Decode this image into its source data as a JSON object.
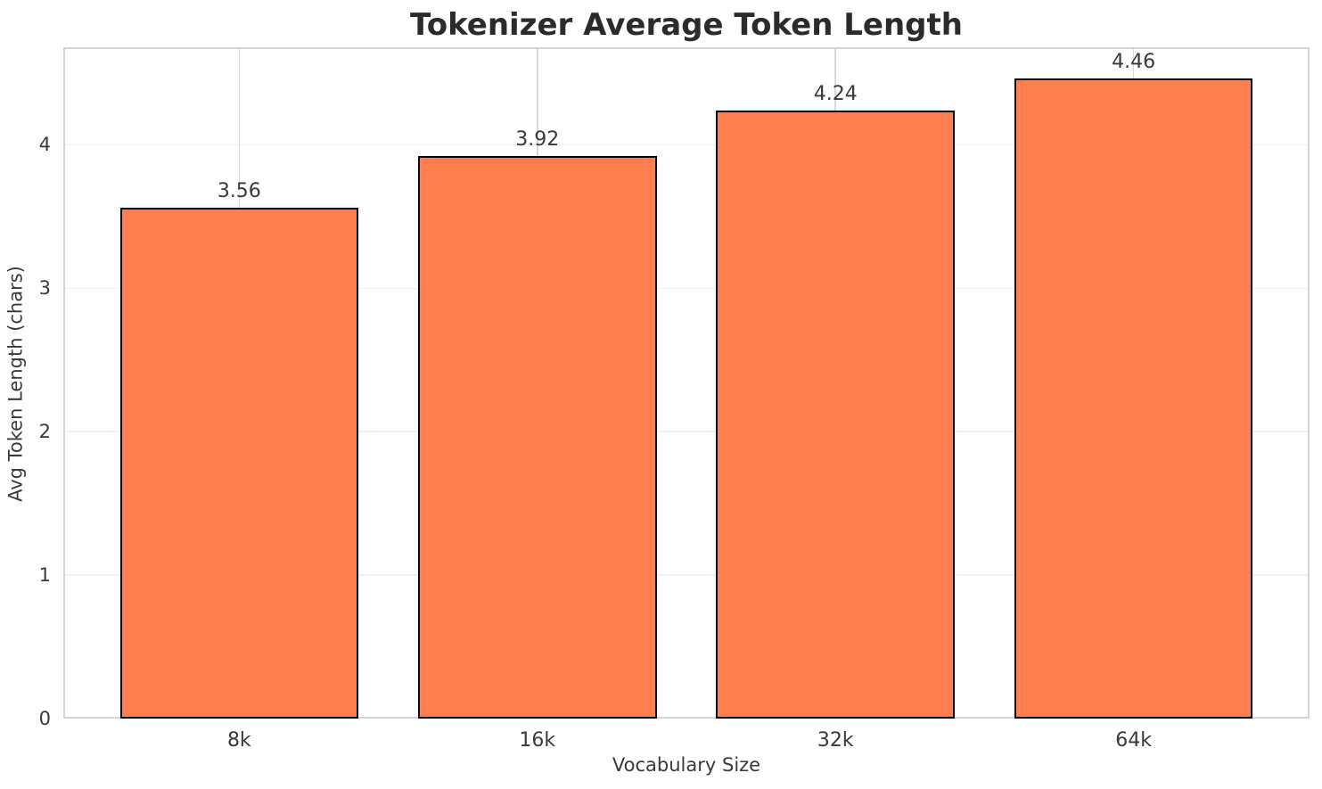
{
  "chart_data": {
    "type": "bar",
    "title": "Tokenizer Average Token Length",
    "xlabel": "Vocabulary Size",
    "ylabel": "Avg Token Length (chars)",
    "categories": [
      "8k",
      "16k",
      "32k",
      "64k"
    ],
    "values": [
      3.56,
      3.92,
      4.24,
      4.46
    ],
    "value_labels": [
      "3.56",
      "3.92",
      "4.24",
      "4.46"
    ],
    "yticks": [
      0,
      1,
      2,
      3,
      4
    ],
    "ylim": [
      0,
      4.68
    ],
    "grid": "both",
    "legend": "none",
    "bar_color": "#FF7F50",
    "bar_edge_color": "#000000"
  }
}
